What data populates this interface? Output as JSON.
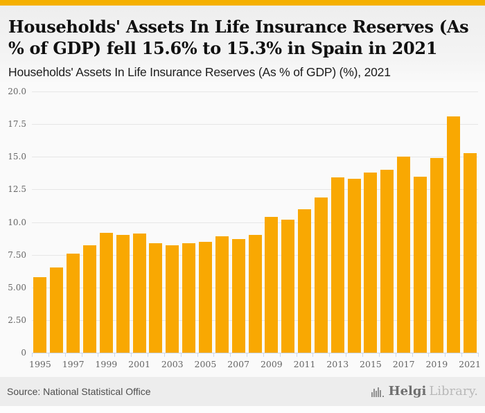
{
  "header": {
    "title": "Households' Assets In Life Insurance Reserves (As % of GDP) fell 15.6% to 15.3% in Spain in 2021",
    "subtitle": "Households' Assets In Life Insurance Reserves (As % of GDP) (%), 2021"
  },
  "chart_data": {
    "type": "bar",
    "title": "Households' Assets In Life Insurance Reserves (As % of GDP) (%), 2021",
    "categories": [
      "1995",
      "1996",
      "1997",
      "1998",
      "1999",
      "2000",
      "2001",
      "2002",
      "2003",
      "2004",
      "2005",
      "2006",
      "2007",
      "2008",
      "2009",
      "2010",
      "2011",
      "2012",
      "2013",
      "2014",
      "2015",
      "2016",
      "2017",
      "2018",
      "2019",
      "2020",
      "2021"
    ],
    "values": [
      5.8,
      6.5,
      7.6,
      8.2,
      9.2,
      9.0,
      9.1,
      8.4,
      8.2,
      8.4,
      8.5,
      8.9,
      8.7,
      9.0,
      10.4,
      10.2,
      11.0,
      11.9,
      13.4,
      13.3,
      13.8,
      14.0,
      15.0,
      13.5,
      14.9,
      18.1,
      15.3
    ],
    "xlabel": "",
    "ylabel": "",
    "ylim": [
      0,
      20
    ],
    "ytick_values": [
      0,
      2.5,
      5,
      7.5,
      10,
      12.5,
      15,
      17.5,
      20
    ],
    "ytick_labels": [
      "0",
      "2.50",
      "5.00",
      "7.50",
      "10.0",
      "12.5",
      "15.0",
      "17.5",
      "20.0"
    ],
    "xtick_every": 2,
    "grid": true,
    "legend": false,
    "bar_color": "#F9A802"
  },
  "footer": {
    "source": "Source: National Statistical Office",
    "logo": {
      "primary": "Helgi",
      "secondary": "Library."
    }
  },
  "colors": {
    "accent_strip": "#F5B000",
    "bar": "#F9A802",
    "axis": "#ccd6eb",
    "gridline": "#e6e6e6",
    "tick_label": "#666666",
    "footer_bg": "#ededed"
  }
}
